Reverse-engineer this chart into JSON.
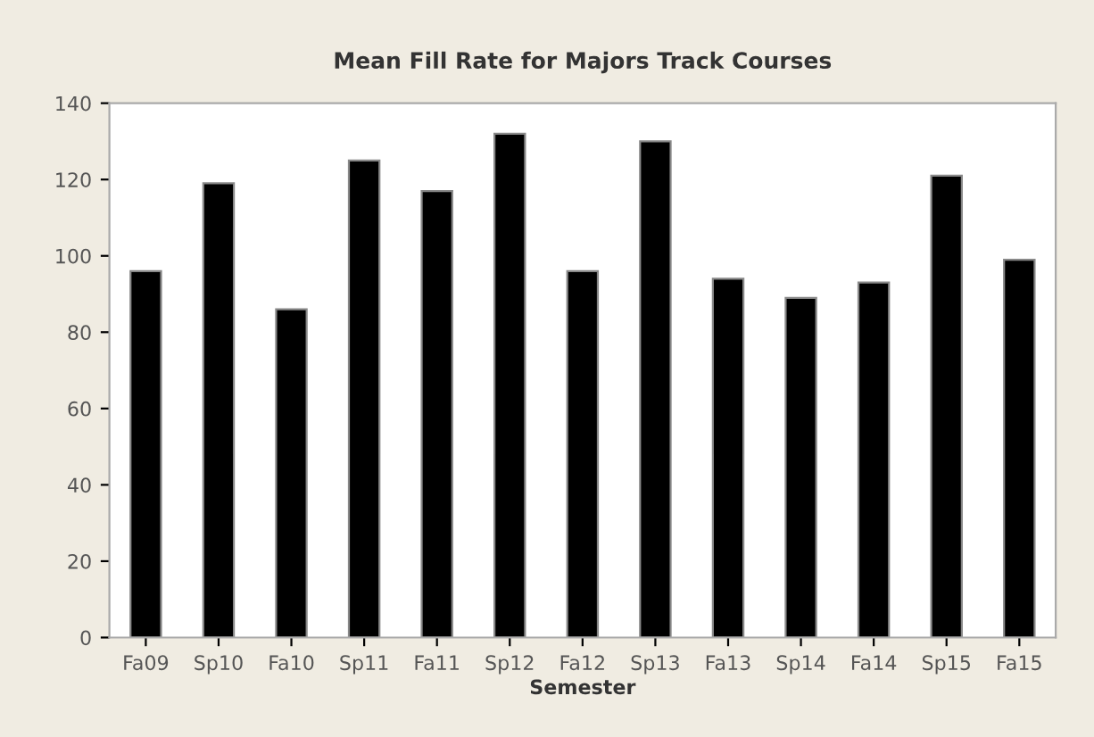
{
  "chart_data": {
    "type": "bar",
    "title": "Mean Fill Rate for Majors Track Courses",
    "xlabel": "Semester",
    "categories": [
      "Fa09",
      "Sp10",
      "Fa10",
      "Sp11",
      "Fa11",
      "Sp12",
      "Fa12",
      "Sp13",
      "Fa13",
      "Sp14",
      "Fa14",
      "Sp15",
      "Fa15"
    ],
    "values": [
      96,
      119,
      86,
      125,
      117,
      132,
      96,
      130,
      94,
      89,
      93,
      121,
      99
    ],
    "color": "#000000",
    "ylim": [
      0,
      140
    ],
    "yticks": [
      0,
      20,
      40,
      60,
      80,
      100,
      120,
      140
    ],
    "grid": false
  }
}
